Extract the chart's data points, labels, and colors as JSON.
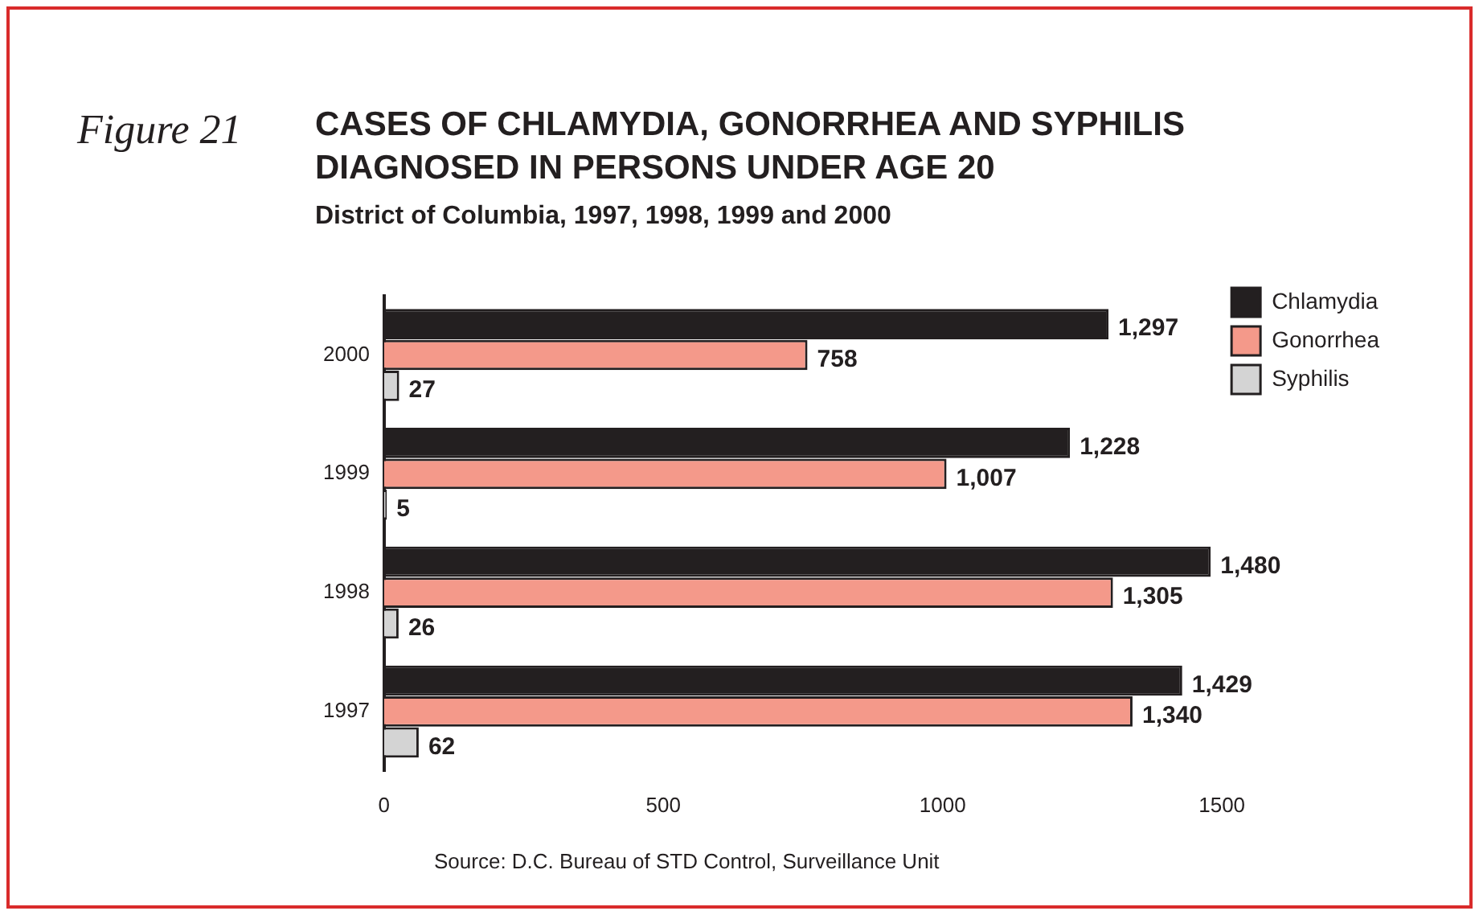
{
  "chart_data": {
    "type": "bar",
    "orientation": "horizontal",
    "title": "CASES OF CHLAMYDIA, GONORRHEA AND SYPHILIS DIAGNOSED IN PERSONS UNDER AGE 20",
    "subtitle": "District of Columbia, 1997, 1998, 1999 and 2000",
    "annotations": [
      "Figure 21",
      "Source: D.C. Bureau of STD Control, Surveillance Unit"
    ],
    "categories": [
      "2000",
      "1999",
      "1998",
      "1997"
    ],
    "series": [
      {
        "name": "Chlamydia",
        "color": "#231f20",
        "values": [
          1297,
          1228,
          1480,
          1429
        ],
        "value_labels": [
          "1,297",
          "1,228",
          "1,480",
          "1,429"
        ]
      },
      {
        "name": "Gonorrhea",
        "color": "#f4998a",
        "values": [
          758,
          1007,
          1305,
          1340
        ],
        "value_labels": [
          "758",
          "1,007",
          "1,305",
          "1,340"
        ]
      },
      {
        "name": "Syphilis",
        "color": "#d4d4d4",
        "values": [
          27,
          5,
          26,
          62
        ],
        "value_labels": [
          "27",
          "5",
          "26",
          "62"
        ]
      }
    ],
    "xlim": [
      0,
      1500
    ],
    "xticks": [
      0,
      500,
      1000,
      1500
    ],
    "grid": false,
    "legend": "top right"
  }
}
